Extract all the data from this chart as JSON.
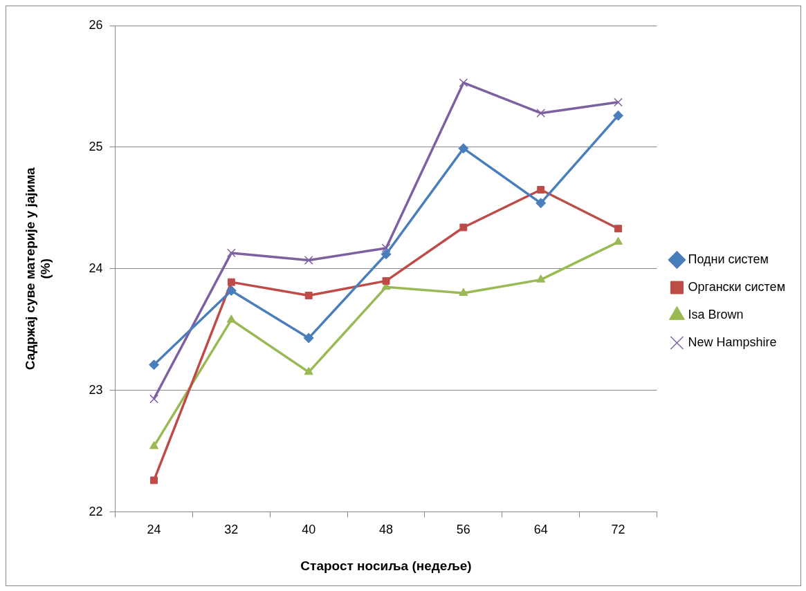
{
  "chart_data": {
    "type": "line",
    "xlabel": "Старост носиља (недеље)",
    "ylabel": "Садржај суве материје у јајима\n(%)",
    "categories": [
      "24",
      "32",
      "40",
      "48",
      "56",
      "64",
      "72"
    ],
    "ylim": [
      22,
      26
    ],
    "yticks": [
      22,
      23,
      24,
      25,
      26
    ],
    "grid": "y",
    "legend": "right",
    "line_style": "solid",
    "series": [
      {
        "name": "Подни систем",
        "color": "#4a7ebb",
        "marker": "diamond",
        "values": [
          23.21,
          23.82,
          23.43,
          24.12,
          24.99,
          24.54,
          25.26
        ]
      },
      {
        "name": "Органски систем",
        "color": "#be4b48",
        "marker": "square",
        "values": [
          22.26,
          23.89,
          23.78,
          23.9,
          24.34,
          24.65,
          24.33
        ]
      },
      {
        "name": "Isa Brown",
        "color": "#98b954",
        "marker": "triangle",
        "values": [
          22.54,
          23.58,
          23.15,
          23.85,
          23.8,
          23.91,
          24.22
        ]
      },
      {
        "name": "New Hampshire",
        "color": "#7d60a0",
        "marker": "cross",
        "values": [
          22.93,
          24.13,
          24.07,
          24.17,
          25.53,
          25.28,
          25.37
        ]
      }
    ]
  }
}
